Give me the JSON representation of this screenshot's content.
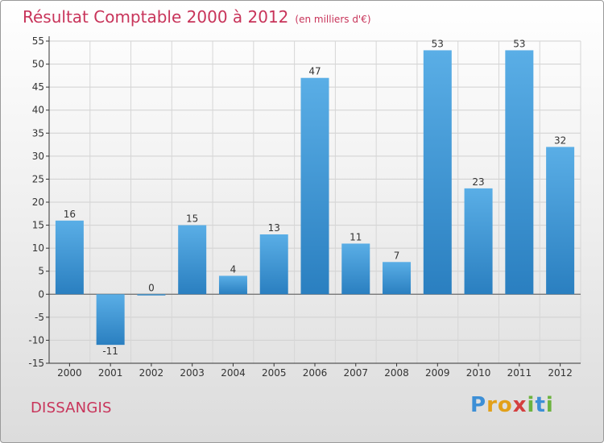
{
  "header": {
    "title": "Résultat Comptable 2000 à 2012",
    "unit": "(en milliers d'€)"
  },
  "footer": {
    "place": "DISSANGIS",
    "logo_letters": [
      "P",
      "r",
      "o",
      "x",
      "i",
      "t",
      "i"
    ]
  },
  "colors": {
    "bar_light": "#5aaee6",
    "bar_dark": "#2a7fc0",
    "title": "#c8345a",
    "logo": [
      "#3d8fd6",
      "#e2a019",
      "#e2a019",
      "#d43f3f",
      "#6cb33f",
      "#3d8fd6",
      "#6cb33f"
    ]
  },
  "chart_data": {
    "type": "bar",
    "title": "Résultat Comptable 2000 à 2012",
    "ylabel": "en milliers d'€",
    "categories": [
      "2000",
      "2001",
      "2002",
      "2003",
      "2004",
      "2005",
      "2006",
      "2007",
      "2008",
      "2009",
      "2010",
      "2011",
      "2012"
    ],
    "values": [
      16,
      -11,
      0,
      15,
      4,
      13,
      47,
      11,
      7,
      53,
      23,
      53,
      32
    ],
    "value_labels": [
      "16",
      "-11",
      "0",
      "15",
      "4",
      "13",
      "47",
      "11",
      "7",
      "53",
      "23",
      "53",
      "32"
    ],
    "ylim": [
      -15,
      55
    ],
    "yticks": [
      -15,
      -10,
      -5,
      0,
      5,
      10,
      15,
      20,
      25,
      30,
      35,
      40,
      45,
      50,
      55
    ],
    "ytick_labels": [
      "-15",
      "-10",
      "-5",
      "0",
      "5",
      "10",
      "15",
      "20",
      "25",
      "30",
      "35",
      "40",
      "45",
      "50",
      "55"
    ],
    "grid": true
  }
}
